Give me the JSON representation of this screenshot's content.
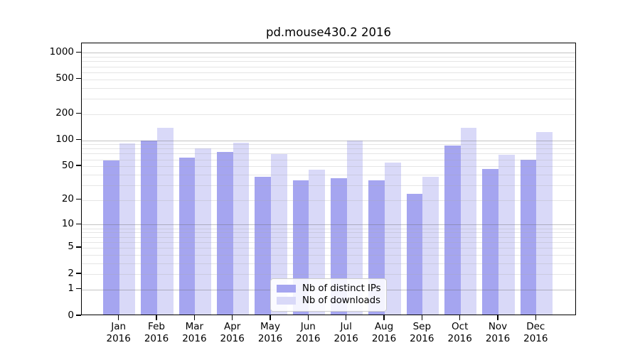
{
  "title": "pd.mouse430.2 2016",
  "colors": {
    "ips_bar": "#a5a5f0",
    "downloads_bar": "#d9d9f8",
    "axis": "#000000",
    "grid_major": "#a9a9a9",
    "grid_minor": "#e3e3e3",
    "legend_border": "#cccccc"
  },
  "legend": {
    "items": [
      {
        "label": "Nb of distinct IPs",
        "color": "#a5a5f0"
      },
      {
        "label": "Nb of downloads",
        "color": "#d9d9f8"
      }
    ]
  },
  "chart_data": {
    "type": "bar",
    "title": "pd.mouse430.2 2016",
    "xlabel": "",
    "ylabel": "",
    "scale": "log1p",
    "ylim": [
      0,
      1250
    ],
    "grid": "on",
    "legend_position": "bottom-center",
    "categories": [
      {
        "month": "Jan",
        "year": "2016"
      },
      {
        "month": "Feb",
        "year": "2016"
      },
      {
        "month": "Mar",
        "year": "2016"
      },
      {
        "month": "Apr",
        "year": "2016"
      },
      {
        "month": "May",
        "year": "2016"
      },
      {
        "month": "Jun",
        "year": "2016"
      },
      {
        "month": "Jul",
        "year": "2016"
      },
      {
        "month": "Aug",
        "year": "2016"
      },
      {
        "month": "Sep",
        "year": "2016"
      },
      {
        "month": "Oct",
        "year": "2016"
      },
      {
        "month": "Nov",
        "year": "2016"
      },
      {
        "month": "Dec",
        "year": "2016"
      }
    ],
    "series": [
      {
        "name": "Nb of distinct IPs",
        "color": "#a5a5f0",
        "values": [
          56,
          95,
          61,
          70,
          36,
          33,
          35,
          33,
          23,
          83,
          45,
          57
        ]
      },
      {
        "name": "Nb of downloads",
        "color": "#d9d9f8",
        "values": [
          88,
          133,
          77,
          90,
          67,
          44,
          95,
          53,
          36,
          134,
          66,
          119
        ]
      }
    ],
    "yticks": [
      0,
      1,
      2,
      5,
      10,
      20,
      50,
      100,
      200,
      500,
      1000
    ],
    "grid_major_values": [
      1,
      10,
      100,
      1000
    ],
    "grid_minor_values": [
      2,
      3,
      4,
      5,
      6,
      7,
      8,
      9,
      20,
      30,
      40,
      50,
      60,
      70,
      80,
      90,
      200,
      300,
      400,
      500,
      600,
      700,
      800,
      900
    ]
  }
}
